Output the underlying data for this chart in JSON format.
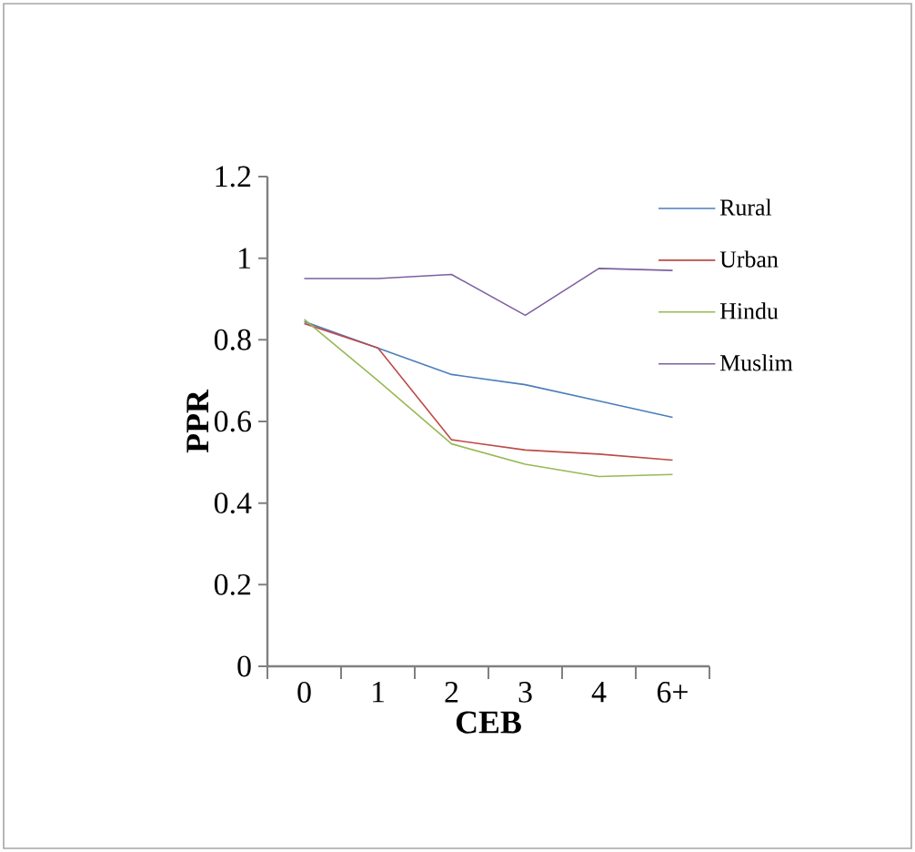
{
  "chart_data": {
    "type": "line",
    "xlabel": "CEB",
    "ylabel": "PPR",
    "categories": [
      "0",
      "1",
      "2",
      "3",
      "4",
      "6+"
    ],
    "ylim": [
      0,
      1.2
    ],
    "yticks": [
      0,
      0.2,
      0.4,
      0.6,
      0.8,
      1,
      1.2
    ],
    "grid": false,
    "legend": "right",
    "marker": "none",
    "line_style": "solid",
    "series": [
      {
        "name": "Rural",
        "color": "#4a7ebb",
        "values": [
          0.845,
          0.78,
          0.715,
          0.69,
          0.65,
          0.61
        ]
      },
      {
        "name": "Urban",
        "color": "#be4b48",
        "values": [
          0.84,
          0.78,
          0.555,
          0.53,
          0.52,
          0.505
        ]
      },
      {
        "name": "Hindu",
        "color": "#98b954",
        "values": [
          0.85,
          0.7,
          0.545,
          0.495,
          0.465,
          0.47
        ]
      },
      {
        "name": "Muslim",
        "color": "#7d60a0",
        "values": [
          0.95,
          0.95,
          0.96,
          0.86,
          0.975,
          0.97
        ]
      }
    ]
  }
}
